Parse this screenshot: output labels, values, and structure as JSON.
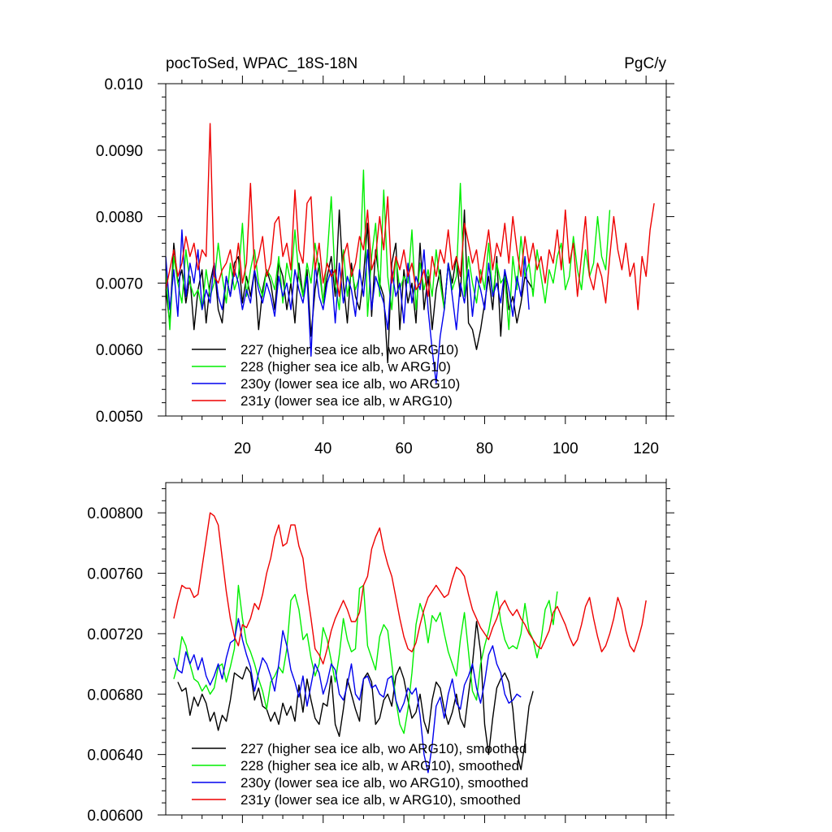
{
  "title_left": "pocToSed, WPAC_18S-18N",
  "title_right": "PgC/y",
  "chart_data": [
    {
      "type": "line",
      "name": "raw",
      "xlim": [
        1,
        125
      ],
      "ylim": [
        0.005,
        0.01
      ],
      "xticks": [
        20,
        40,
        60,
        80,
        100,
        120
      ],
      "ytick_labels": [
        "0.0050",
        "0.0060",
        "0.0070",
        "0.0080",
        "0.0090",
        "0.010"
      ],
      "ytick_values": [
        0.005,
        0.006,
        0.007,
        0.008,
        0.009,
        0.01
      ],
      "legend_position": "bottom-left",
      "series": [
        {
          "name": "227 (higher sea ice alb, wo ARG10)",
          "color": "#000000",
          "x_start": 1,
          "values": [
            0.0069,
            0.0064,
            0.0076,
            0.007,
            0.0072,
            0.0067,
            0.0071,
            0.0063,
            0.0069,
            0.0072,
            0.0064,
            0.007,
            0.0073,
            0.0066,
            0.0064,
            0.0071,
            0.0068,
            0.0073,
            0.0074,
            0.0067,
            0.0071,
            0.0068,
            0.0072,
            0.0063,
            0.0069,
            0.0072,
            0.007,
            0.0066,
            0.0073,
            0.0071,
            0.0066,
            0.007,
            0.0064,
            0.0073,
            0.0068,
            0.0072,
            0.0062,
            0.0069,
            0.0073,
            0.0067,
            0.0071,
            0.0074,
            0.0068,
            0.0081,
            0.007,
            0.0064,
            0.0073,
            0.0068,
            0.0066,
            0.0071,
            0.0079,
            0.0065,
            0.0075,
            0.007,
            0.0068,
            0.0058,
            0.0073,
            0.0076,
            0.0063,
            0.0072,
            0.0067,
            0.007,
            0.0064,
            0.0076,
            0.0066,
            0.0071,
            0.0063,
            0.0069,
            0.0072,
            0.0066,
            0.0073,
            0.007,
            0.0074,
            0.0068,
            0.0081,
            0.0064,
            0.0063,
            0.006,
            0.0063,
            0.0067,
            0.0071,
            0.0066,
            0.0074,
            0.0062,
            0.0072,
            0.0066,
            0.0068,
            0.0064,
            0.0067,
            0.0071,
            0.007,
            0.0069
          ]
        },
        {
          "name": "228 (higher sea ice alb, w ARG10)",
          "color": "#00ee00",
          "x_start": 1,
          "values": [
            0.0072,
            0.0063,
            0.0074,
            0.007,
            0.0067,
            0.0075,
            0.007,
            0.0068,
            0.0069,
            0.0066,
            0.0072,
            0.0068,
            0.007,
            0.0076,
            0.0071,
            0.0067,
            0.0073,
            0.0069,
            0.0071,
            0.0079,
            0.0068,
            0.0072,
            0.0075,
            0.007,
            0.0068,
            0.0072,
            0.0071,
            0.0069,
            0.0074,
            0.0067,
            0.0073,
            0.007,
            0.0078,
            0.0071,
            0.0068,
            0.0073,
            0.007,
            0.0076,
            0.0072,
            0.0067,
            0.0074,
            0.0083,
            0.007,
            0.0066,
            0.0075,
            0.0068,
            0.0072,
            0.0069,
            0.0071,
            0.0087,
            0.0065,
            0.0074,
            0.0079,
            0.0068,
            0.0084,
            0.0071,
            0.0066,
            0.0074,
            0.0069,
            0.0071,
            0.007,
            0.0078,
            0.0066,
            0.0073,
            0.0069,
            0.0072,
            0.0068,
            0.0075,
            0.007,
            0.0066,
            0.0073,
            0.0069,
            0.0071,
            0.0085,
            0.0068,
            0.0074,
            0.007,
            0.0067,
            0.0072,
            0.0069,
            0.0076,
            0.0068,
            0.0073,
            0.007,
            0.0071,
            0.0063,
            0.0074,
            0.0069,
            0.0077,
            0.0071,
            0.0073,
            0.0068,
            0.0075,
            0.0071,
            0.0067,
            0.0072,
            0.007,
            0.0074,
            0.0076,
            0.0069,
            0.0071,
            0.0077,
            0.0072,
            0.0069,
            0.0075,
            0.0071,
            0.0073,
            0.008,
            0.0074,
            0.0072,
            0.0081
          ]
        },
        {
          "name": "230y (lower sea ice alb, wo ARG10)",
          "color": "#0000ee",
          "x_start": 1,
          "values": [
            0.0074,
            0.0066,
            0.0072,
            0.0065,
            0.0078,
            0.0068,
            0.0073,
            0.007,
            0.0075,
            0.0066,
            0.0069,
            0.0067,
            0.0073,
            0.0068,
            0.0066,
            0.0071,
            0.0068,
            0.0072,
            0.007,
            0.0066,
            0.0069,
            0.0067,
            0.0072,
            0.0069,
            0.0067,
            0.007,
            0.0068,
            0.0065,
            0.0071,
            0.0068,
            0.007,
            0.0066,
            0.0072,
            0.0069,
            0.0067,
            0.0071,
            0.0059,
            0.0073,
            0.0068,
            0.0066,
            0.007,
            0.0072,
            0.0064,
            0.0073,
            0.0067,
            0.0071,
            0.0069,
            0.0065,
            0.0072,
            0.0068,
            0.0075,
            0.0066,
            0.0071,
            0.0069,
            0.0067,
            0.0063,
            0.0072,
            0.0068,
            0.007,
            0.0064,
            0.0073,
            0.0067,
            0.0071,
            0.0069,
            0.0075,
            0.0066,
            0.006,
            0.0055,
            0.0062,
            0.0066,
            0.0073,
            0.0068,
            0.0063,
            0.007,
            0.0067,
            0.0072,
            0.0065,
            0.0071,
            0.0069,
            0.0066,
            0.0073,
            0.0068,
            0.007,
            0.0067,
            0.0072,
            0.0069,
            0.0065,
            0.0071,
            0.0068,
            0.0074,
            0.0066
          ]
        },
        {
          "name": "231y (lower sea ice alb, w ARG10)",
          "color": "#ee0000",
          "x_start": 1,
          "values": [
            0.0069,
            0.0072,
            0.0075,
            0.0071,
            0.0073,
            0.0077,
            0.0074,
            0.0076,
            0.0072,
            0.0075,
            0.0074,
            0.0094,
            0.0071,
            0.007,
            0.0072,
            0.0073,
            0.0075,
            0.0071,
            0.0076,
            0.007,
            0.0073,
            0.0085,
            0.0072,
            0.0074,
            0.0077,
            0.0071,
            0.0073,
            0.0079,
            0.008,
            0.0074,
            0.0076,
            0.0072,
            0.0084,
            0.0075,
            0.0073,
            0.0082,
            0.0083,
            0.0072,
            0.0076,
            0.007,
            0.0073,
            0.0071,
            0.0072,
            0.0068,
            0.0074,
            0.0076,
            0.0071,
            0.0073,
            0.0077,
            0.0075,
            0.0081,
            0.0072,
            0.0074,
            0.008,
            0.0075,
            0.0083,
            0.007,
            0.0074,
            0.0072,
            0.0075,
            0.0071,
            0.0073,
            0.0069,
            0.007,
            0.0072,
            0.0068,
            0.0074,
            0.0071,
            0.0075,
            0.0073,
            0.0078,
            0.0072,
            0.0074,
            0.0071,
            0.0079,
            0.0076,
            0.0073,
            0.0075,
            0.007,
            0.0074,
            0.0078,
            0.0072,
            0.0076,
            0.0074,
            0.0079,
            0.0073,
            0.008,
            0.0075,
            0.0071,
            0.0077,
            0.0073,
            0.0076,
            0.0072,
            0.0074,
            0.007,
            0.0075,
            0.0073,
            0.0078,
            0.0072,
            0.0081,
            0.0073,
            0.0076,
            0.0068,
            0.0074,
            0.008,
            0.0071,
            0.0069,
            0.0073,
            0.0071,
            0.0067,
            0.0074,
            0.008,
            0.0075,
            0.0072,
            0.0076,
            0.0071,
            0.0073,
            0.0066,
            0.0074,
            0.0071,
            0.0078,
            0.0082
          ]
        }
      ]
    },
    {
      "type": "line",
      "name": "smoothed",
      "xlim": [
        1,
        125
      ],
      "ylim": [
        0.006,
        0.0082
      ],
      "ytick_labels": [
        "0.00600",
        "0.00640",
        "0.00680",
        "0.00720",
        "0.00760",
        "0.00800"
      ],
      "ytick_values": [
        0.006,
        0.0064,
        0.0068,
        0.0072,
        0.0076,
        0.008
      ],
      "legend_position": "bottom-left",
      "series": [
        {
          "name": "227 (higher sea ice alb, wo ARG10), smoothed",
          "color": "#000000",
          "x_start": 4,
          "values": [
            0.00688,
            0.00682,
            0.00684,
            0.00666,
            0.00678,
            0.00672,
            0.0068,
            0.00674,
            0.00662,
            0.00668,
            0.00656,
            0.00666,
            0.00662,
            0.00676,
            0.00694,
            0.00692,
            0.0069,
            0.00698,
            0.00694,
            0.00676,
            0.00684,
            0.00672,
            0.0067,
            0.00662,
            0.00668,
            0.0066,
            0.00674,
            0.00666,
            0.00672,
            0.00662,
            0.00686,
            0.00668,
            0.0069,
            0.00676,
            0.00664,
            0.0066,
            0.00674,
            0.00672,
            0.00692,
            0.0066,
            0.00652,
            0.0067,
            0.0069,
            0.0068,
            0.0067,
            0.00662,
            0.0069,
            0.00694,
            0.00688,
            0.0066,
            0.00664,
            0.00676,
            0.0068,
            0.00672,
            0.00692,
            0.00698,
            0.0069,
            0.00676,
            0.00664,
            0.00668,
            0.0068,
            0.00662,
            0.00654,
            0.00676,
            0.00688,
            0.00684,
            0.0067,
            0.0066,
            0.00668,
            0.0068,
            0.00664,
            0.00658,
            0.0068,
            0.007,
            0.00728,
            0.00708,
            0.0066,
            0.0064,
            0.00664,
            0.00684,
            0.0069,
            0.00694,
            0.00688,
            0.0067,
            0.0064,
            0.0063,
            0.00648,
            0.00672,
            0.00682
          ]
        },
        {
          "name": "228 (higher sea ice alb, w ARG10), smoothed",
          "color": "#00ee00",
          "x_start": 3,
          "values": [
            0.0069,
            0.007,
            0.00718,
            0.00712,
            0.007,
            0.0069,
            0.00688,
            0.00682,
            0.00686,
            0.0068,
            0.00684,
            0.00698,
            0.007,
            0.00688,
            0.00698,
            0.0071,
            0.00752,
            0.0073,
            0.00714,
            0.00708,
            0.007,
            0.0069,
            0.00682,
            0.0067,
            0.00688,
            0.00692,
            0.00698,
            0.00694,
            0.0071,
            0.00742,
            0.00746,
            0.00736,
            0.00716,
            0.0072,
            0.00704,
            0.00692,
            0.007,
            0.00724,
            0.00716,
            0.00702,
            0.00688,
            0.00706,
            0.0073,
            0.00716,
            0.00708,
            0.0071,
            0.0075,
            0.00752,
            0.00712,
            0.00704,
            0.00696,
            0.00718,
            0.00726,
            0.00722,
            0.007,
            0.00676,
            0.0066,
            0.00654,
            0.0067,
            0.00694,
            0.00726,
            0.0074,
            0.00732,
            0.00714,
            0.00732,
            0.00728,
            0.00734,
            0.0072,
            0.00708,
            0.007,
            0.00692,
            0.00716,
            0.00734,
            0.00708,
            0.00682,
            0.00676,
            0.007,
            0.00712,
            0.00722,
            0.00736,
            0.00748,
            0.00728,
            0.00716,
            0.0071,
            0.00712,
            0.0071,
            0.0072,
            0.0074,
            0.00722,
            0.00716,
            0.00704,
            0.00716,
            0.00736,
            0.00742,
            0.00726,
            0.00748
          ]
        },
        {
          "name": "230y (lower sea ice alb, wo ARG10), smoothed",
          "color": "#0000ee",
          "x_start": 3,
          "values": [
            0.00704,
            0.00696,
            0.00694,
            0.00708,
            0.007,
            0.00706,
            0.00696,
            0.00704,
            0.00692,
            0.00686,
            0.00692,
            0.007,
            0.0069,
            0.00704,
            0.00714,
            0.00716,
            0.0073,
            0.00716,
            0.00706,
            0.00698,
            0.00682,
            0.00694,
            0.00704,
            0.007,
            0.00692,
            0.00682,
            0.007,
            0.00722,
            0.00712,
            0.00696,
            0.00688,
            0.00678,
            0.00692,
            0.00672,
            0.00686,
            0.007,
            0.00694,
            0.0068,
            0.00688,
            0.007,
            0.00696,
            0.0068,
            0.00676,
            0.00686,
            0.007,
            0.0068,
            0.00676,
            0.0069,
            0.00692,
            0.00684,
            0.00686,
            0.0068,
            0.00678,
            0.0069,
            0.00692,
            0.00676,
            0.00668,
            0.00674,
            0.00684,
            0.0068,
            0.00684,
            0.00666,
            0.0064,
            0.00628,
            0.00646,
            0.00672,
            0.00678,
            0.00664,
            0.0068,
            0.0069,
            0.00674,
            0.0067,
            0.00686,
            0.00692,
            0.007,
            0.00684,
            0.00674,
            0.00688,
            0.00706,
            0.00712,
            0.007,
            0.00694,
            0.0068,
            0.00674,
            0.00676,
            0.0068,
            0.00678
          ]
        },
        {
          "name": "231y (lower sea ice alb, w ARG10), smoothed",
          "color": "#ee0000",
          "x_start": 3,
          "values": [
            0.0073,
            0.00742,
            0.00752,
            0.0075,
            0.0075,
            0.00744,
            0.00746,
            0.00764,
            0.00782,
            0.008,
            0.00798,
            0.00792,
            0.0077,
            0.00748,
            0.0073,
            0.00718,
            0.00712,
            0.00726,
            0.00724,
            0.0073,
            0.0074,
            0.00736,
            0.00746,
            0.0076,
            0.0077,
            0.00784,
            0.00792,
            0.00778,
            0.0078,
            0.00792,
            0.00792,
            0.00778,
            0.0077,
            0.00748,
            0.0073,
            0.0071,
            0.00706,
            0.007,
            0.0071,
            0.00722,
            0.0073,
            0.00736,
            0.00742,
            0.00736,
            0.00728,
            0.00728,
            0.00734,
            0.00752,
            0.00758,
            0.00776,
            0.00784,
            0.0079,
            0.00776,
            0.00766,
            0.00758,
            0.00744,
            0.0073,
            0.00718,
            0.0071,
            0.00708,
            0.00714,
            0.00726,
            0.00736,
            0.00744,
            0.00748,
            0.00752,
            0.00748,
            0.00744,
            0.00746,
            0.00756,
            0.00764,
            0.00762,
            0.00758,
            0.00746,
            0.00736,
            0.0073,
            0.00724,
            0.0072,
            0.00716,
            0.00724,
            0.0073,
            0.00738,
            0.00742,
            0.00736,
            0.00732,
            0.00736,
            0.0073,
            0.00726,
            0.0072,
            0.00716,
            0.00712,
            0.0071,
            0.00716,
            0.00722,
            0.00734,
            0.00738,
            0.00732,
            0.00726,
            0.00718,
            0.00712,
            0.00716,
            0.00726,
            0.00738,
            0.00744,
            0.0073,
            0.00718,
            0.00708,
            0.00712,
            0.0072,
            0.0073,
            0.00744,
            0.00736,
            0.00722,
            0.00712,
            0.00708,
            0.00716,
            0.00726,
            0.00742
          ]
        }
      ]
    }
  ]
}
